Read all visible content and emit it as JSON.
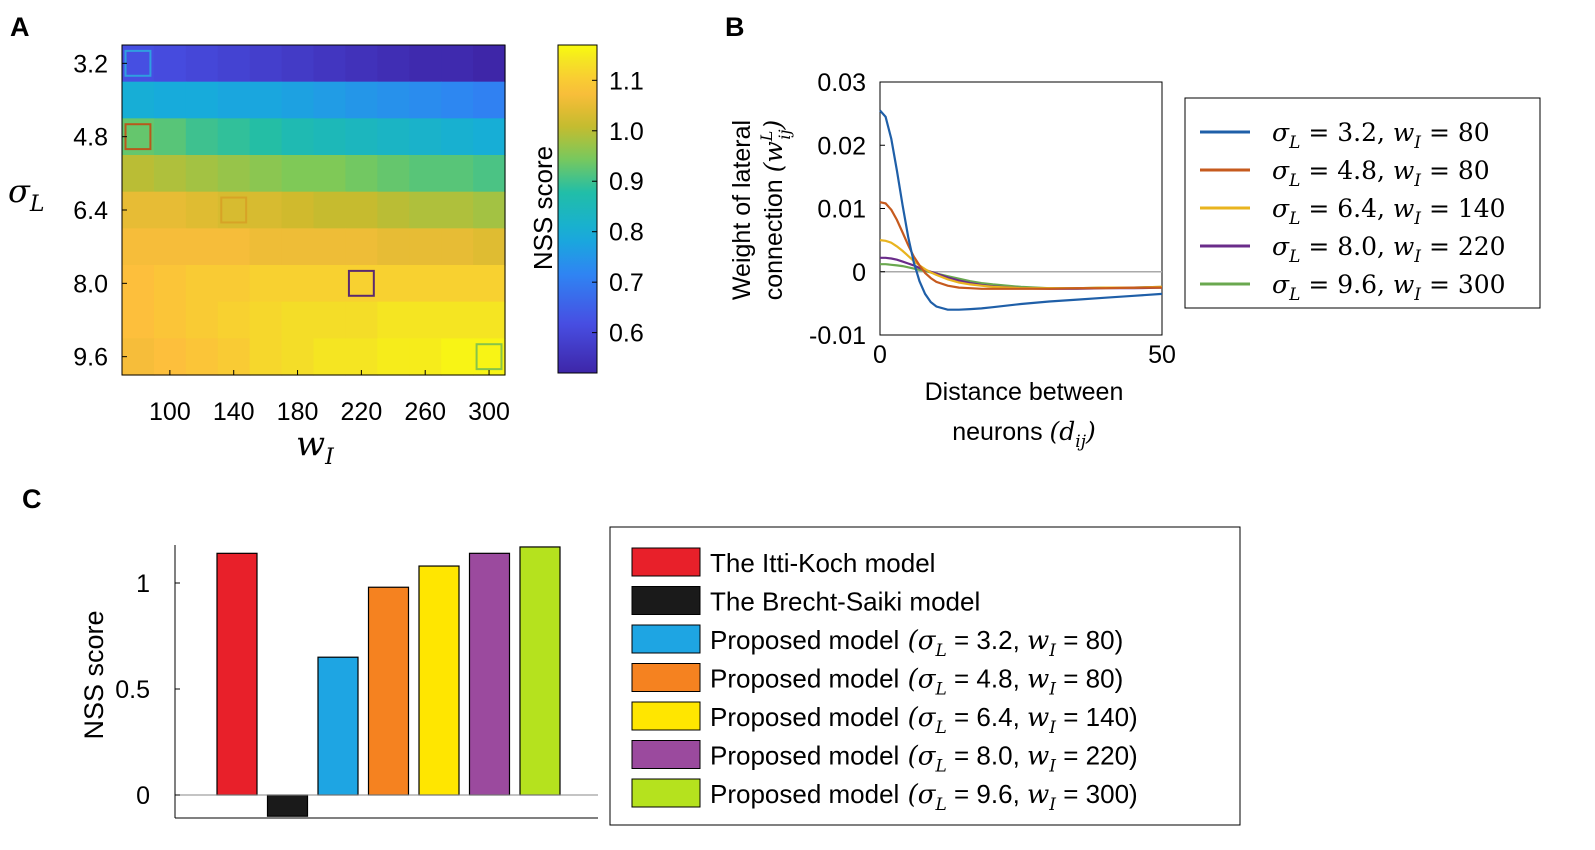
{
  "panel_labels": {
    "a": "A",
    "b": "B",
    "c": "C"
  },
  "chart_data": [
    {
      "id": "A",
      "type": "heatmap",
      "title": "",
      "xlabel": "w_I",
      "xlabel_main": "w",
      "xlabel_sub": "I",
      "ylabel": "σ_L",
      "ylabel_main": "σ",
      "ylabel_sub": "L",
      "x": [
        80,
        100,
        120,
        140,
        160,
        180,
        200,
        220,
        240,
        260,
        280,
        300
      ],
      "x_ticks": [
        100,
        140,
        180,
        220,
        260,
        300
      ],
      "x_tick_labels": [
        "100",
        "140",
        "180",
        "220",
        "260",
        "300"
      ],
      "y": [
        3.2,
        4.0,
        4.8,
        5.6,
        6.4,
        7.2,
        8.0,
        8.8,
        9.6
      ],
      "y_ticks": [
        3.2,
        4.8,
        6.4,
        8.0,
        9.6
      ],
      "y_tick_labels": [
        "3.2",
        "4.8",
        "6.4",
        "8.0",
        "9.6"
      ],
      "values": [
        [
          0.62,
          0.61,
          0.6,
          0.59,
          0.58,
          0.57,
          0.56,
          0.55,
          0.54,
          0.53,
          0.53,
          0.52
        ],
        [
          0.8,
          0.79,
          0.79,
          0.78,
          0.78,
          0.77,
          0.76,
          0.75,
          0.74,
          0.73,
          0.72,
          0.71
        ],
        [
          0.93,
          0.92,
          0.9,
          0.89,
          0.88,
          0.86,
          0.85,
          0.84,
          0.83,
          0.82,
          0.81,
          0.8
        ],
        [
          1.0,
          0.99,
          0.98,
          0.97,
          0.96,
          0.95,
          0.95,
          0.94,
          0.93,
          0.92,
          0.92,
          0.91
        ],
        [
          1.05,
          1.05,
          1.04,
          1.03,
          1.03,
          1.02,
          1.01,
          1.01,
          1.0,
          0.99,
          0.99,
          0.98
        ],
        [
          1.07,
          1.07,
          1.07,
          1.07,
          1.06,
          1.06,
          1.06,
          1.06,
          1.05,
          1.05,
          1.05,
          1.04
        ],
        [
          1.08,
          1.09,
          1.1,
          1.1,
          1.11,
          1.11,
          1.11,
          1.11,
          1.11,
          1.11,
          1.11,
          1.11
        ],
        [
          1.08,
          1.09,
          1.1,
          1.11,
          1.12,
          1.13,
          1.13,
          1.13,
          1.14,
          1.14,
          1.14,
          1.14
        ],
        [
          1.07,
          1.08,
          1.09,
          1.1,
          1.12,
          1.13,
          1.14,
          1.14,
          1.15,
          1.15,
          1.16,
          1.16
        ]
      ],
      "highlight_cells": [
        {
          "x": 80,
          "y": 3.2,
          "color": "#2f9ee0"
        },
        {
          "x": 80,
          "y": 4.8,
          "color": "#b8581c"
        },
        {
          "x": 140,
          "y": 6.4,
          "color": "#d7a326"
        },
        {
          "x": 220,
          "y": 8.0,
          "color": "#5b2a6e"
        },
        {
          "x": 300,
          "y": 9.6,
          "color": "#86c44a"
        }
      ],
      "colorbar": {
        "label": "NSS score",
        "range": [
          0.52,
          1.17
        ],
        "ticks": [
          0.6,
          0.7,
          0.8,
          0.9,
          1.0,
          1.1
        ],
        "tick_labels": [
          "0.6",
          "0.7",
          "0.8",
          "0.9",
          "1.0",
          "1.1"
        ]
      }
    },
    {
      "id": "B",
      "type": "line",
      "xlabel_line1": "Distance between",
      "xlabel_line2": "neurons",
      "xlabel_math": "(d_ij)",
      "xlabel_math_main": "(d",
      "xlabel_math_sub": "ij",
      "xlabel_math_close": ")",
      "ylabel_line1": "Weight of lateral",
      "ylabel_line2": "connection",
      "ylabel_math_main": "(w",
      "ylabel_math_sub": "ij",
      "ylabel_math_sup": "L",
      "ylabel_math_close": ")",
      "xlim": [
        0,
        50
      ],
      "ylim": [
        -0.01,
        0.03
      ],
      "x_ticks": [
        0,
        50
      ],
      "x_tick_labels": [
        "0",
        "50"
      ],
      "y_ticks": [
        -0.01,
        0,
        0.01,
        0.02,
        0.03
      ],
      "y_tick_labels": [
        "-0.01",
        "0",
        "0.01",
        "0.02",
        "0.03"
      ],
      "x": [
        0,
        1,
        2,
        3,
        4,
        5,
        6,
        7,
        8,
        9,
        10,
        12,
        14,
        16,
        18,
        20,
        25,
        30,
        35,
        40,
        45,
        50
      ],
      "series": [
        {
          "name": "σ_L = 3.2, w_I = 80",
          "sigma_label": "σ",
          "sigma_sub": "L",
          "sigma_val": " = 3.2, ",
          "w_label": "w",
          "w_sub": "I",
          "w_val": " = 80",
          "color": "#1f5fa8",
          "values": [
            0.0255,
            0.0245,
            0.021,
            0.016,
            0.0105,
            0.0055,
            0.0015,
            -0.0015,
            -0.0035,
            -0.0048,
            -0.0055,
            -0.006,
            -0.006,
            -0.0059,
            -0.0058,
            -0.0056,
            -0.0051,
            -0.0047,
            -0.0044,
            -0.0041,
            -0.0038,
            -0.0035
          ]
        },
        {
          "name": "σ_L = 4.8, w_I = 80",
          "sigma_label": "σ",
          "sigma_sub": "L",
          "sigma_val": " = 4.8, ",
          "w_label": "w",
          "w_sub": "I",
          "w_val": " = 80",
          "color": "#c65a1e",
          "values": [
            0.011,
            0.0108,
            0.0098,
            0.0082,
            0.0062,
            0.0042,
            0.0024,
            0.001,
            -0.0002,
            -0.001,
            -0.0016,
            -0.0022,
            -0.0025,
            -0.0026,
            -0.0027,
            -0.0027,
            -0.0027,
            -0.0027,
            -0.0026,
            -0.0026,
            -0.0025,
            -0.0025
          ]
        },
        {
          "name": "σ_L = 6.4, w_I = 140",
          "sigma_label": "σ",
          "sigma_sub": "L",
          "sigma_val": " = 6.4, ",
          "w_label": "w",
          "w_sub": "I",
          "w_val": " = 140",
          "color": "#e9b41f",
          "values": [
            0.005,
            0.0049,
            0.0046,
            0.004,
            0.0033,
            0.0025,
            0.0017,
            0.001,
            0.0004,
            -0.0001,
            -0.0005,
            -0.0012,
            -0.0017,
            -0.002,
            -0.0022,
            -0.0024,
            -0.0026,
            -0.0026,
            -0.0026,
            -0.0025,
            -0.0025,
            -0.0024
          ]
        },
        {
          "name": "σ_L = 8.0, w_I = 220",
          "sigma_label": "σ",
          "sigma_sub": "L",
          "sigma_val": " = 8.0, ",
          "w_label": "w",
          "w_sub": "I",
          "w_val": " = 220",
          "color": "#6a2c8a",
          "values": [
            0.0022,
            0.0022,
            0.0021,
            0.0019,
            0.0016,
            0.0013,
            0.001,
            0.0006,
            0.0003,
            0,
            -0.0003,
            -0.0009,
            -0.0014,
            -0.0018,
            -0.0021,
            -0.0023,
            -0.0026,
            -0.0027,
            -0.0027,
            -0.0026,
            -0.0026,
            -0.0025
          ]
        },
        {
          "name": "σ_L = 9.6, w_I = 300",
          "sigma_label": "σ",
          "sigma_sub": "L",
          "sigma_val": " = 9.6, ",
          "w_label": "w",
          "w_sub": "I",
          "w_val": " = 300",
          "color": "#6aa84f",
          "values": [
            0.0012,
            0.0012,
            0.0011,
            0.001,
            0.0009,
            0.0007,
            0.0005,
            0.0003,
            0.0001,
            -0.0001,
            -0.0003,
            -0.0007,
            -0.0011,
            -0.0015,
            -0.0018,
            -0.002,
            -0.0024,
            -0.0026,
            -0.0026,
            -0.0025,
            -0.0025,
            -0.0024
          ]
        }
      ],
      "reference_line": {
        "y": 0,
        "color": "#aaaaaa"
      },
      "legend_position": "right"
    },
    {
      "id": "C",
      "type": "bar",
      "ylabel": "NSS score",
      "ylim": [
        -0.1,
        1.2
      ],
      "y_ticks": [
        0,
        0.5,
        1
      ],
      "y_tick_labels": [
        "0",
        "0.5",
        "1"
      ],
      "series": [
        {
          "name": "The Itti-Koch model",
          "value": 1.14,
          "color": "#e8202a"
        },
        {
          "name": "The Brecht-Saiki model",
          "value": -0.1,
          "color": "#1a1a1a"
        },
        {
          "name": "Proposed model",
          "math": "(σ_L = 3.2, w_I = 80)",
          "sigma_val": " = 3.2, ",
          "w_val": " = 80)",
          "value": 0.65,
          "color": "#1ea5e3"
        },
        {
          "name": "Proposed model",
          "math": "(σ_L = 4.8, w_I = 80)",
          "sigma_val": " = 4.8, ",
          "w_val": " = 80)",
          "value": 0.98,
          "color": "#f58220"
        },
        {
          "name": "Proposed model",
          "math": "(σ_L = 6.4, w_I = 140)",
          "sigma_val": " = 6.4, ",
          "w_val": " = 140)",
          "value": 1.08,
          "color": "#ffe600"
        },
        {
          "name": "Proposed model",
          "math": "(σ_L = 8.0, w_I = 220)",
          "sigma_val": " = 8.0, ",
          "w_val": " = 220)",
          "value": 1.14,
          "color": "#9b4a9e"
        },
        {
          "name": "Proposed model",
          "math": "(σ_L = 9.6, w_I = 300)",
          "sigma_val": " = 9.6, ",
          "w_val": " = 300)",
          "value": 1.17,
          "color": "#b5e21e"
        }
      ],
      "legend_position": "right"
    }
  ]
}
